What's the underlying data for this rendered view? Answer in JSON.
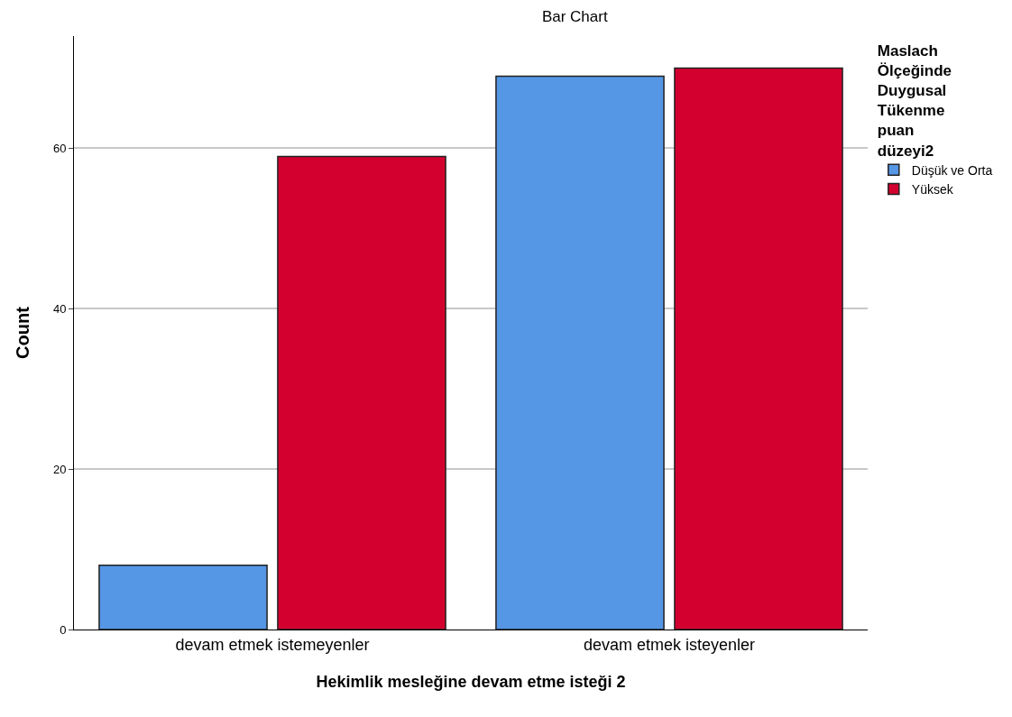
{
  "chart_data": {
    "type": "bar",
    "title": "Bar Chart",
    "xlabel": "Hekimlik mesleğine devam etme isteği 2",
    "ylabel": "Count",
    "legend_title": "Maslach Ölçeğinde Duygusal Tükenme puan düzeyi2",
    "categories": [
      "devam etmek istemeyenler",
      "devam etmek isteyenler"
    ],
    "series": [
      {
        "name": "Düşük ve Orta",
        "color": "#5596e5",
        "values": [
          8,
          69
        ]
      },
      {
        "name": "Yüksek",
        "color": "#d3002f",
        "values": [
          59,
          70
        ]
      }
    ],
    "ylim": [
      0,
      74
    ],
    "yticks": [
      0,
      20,
      40,
      60
    ],
    "grid": "y",
    "legend": "top right"
  }
}
